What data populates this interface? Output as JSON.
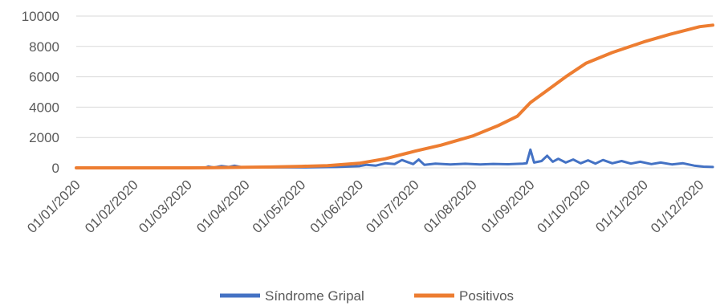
{
  "chart_data": {
    "type": "line",
    "title": "",
    "xlabel": "",
    "ylabel": "",
    "ylim": [
      0,
      10000
    ],
    "yticks": [
      0,
      2000,
      4000,
      6000,
      8000,
      10000
    ],
    "xlim": [
      "2020-01-01",
      "2020-12-08"
    ],
    "xticks": [
      "01/01/2020",
      "01/02/2020",
      "01/03/2020",
      "01/04/2020",
      "01/05/2020",
      "01/06/2020",
      "01/07/2020",
      "01/08/2020",
      "01/09/2020",
      "01/10/2020",
      "01/11/2020",
      "01/12/2020"
    ],
    "grid": true,
    "legend_position": "bottom",
    "series": [
      {
        "name": "Síndrome Gripal",
        "color": "#4472C4",
        "points": [
          [
            "2020-01-01",
            0
          ],
          [
            "2020-03-10",
            0
          ],
          [
            "2020-03-12",
            90
          ],
          [
            "2020-03-15",
            20
          ],
          [
            "2020-03-19",
            120
          ],
          [
            "2020-03-23",
            60
          ],
          [
            "2020-03-26",
            140
          ],
          [
            "2020-03-30",
            40
          ],
          [
            "2020-04-10",
            30
          ],
          [
            "2020-05-01",
            30
          ],
          [
            "2020-05-20",
            60
          ],
          [
            "2020-06-01",
            110
          ],
          [
            "2020-06-05",
            200
          ],
          [
            "2020-06-10",
            150
          ],
          [
            "2020-06-15",
            300
          ],
          [
            "2020-06-20",
            250
          ],
          [
            "2020-06-24",
            520
          ],
          [
            "2020-06-27",
            380
          ],
          [
            "2020-06-30",
            250
          ],
          [
            "2020-07-03",
            550
          ],
          [
            "2020-07-06",
            200
          ],
          [
            "2020-07-12",
            280
          ],
          [
            "2020-07-20",
            220
          ],
          [
            "2020-07-28",
            270
          ],
          [
            "2020-08-05",
            230
          ],
          [
            "2020-08-12",
            260
          ],
          [
            "2020-08-20",
            240
          ],
          [
            "2020-08-28",
            280
          ],
          [
            "2020-08-30",
            300
          ],
          [
            "2020-09-01",
            1200
          ],
          [
            "2020-09-03",
            350
          ],
          [
            "2020-09-07",
            450
          ],
          [
            "2020-09-10",
            800
          ],
          [
            "2020-09-13",
            400
          ],
          [
            "2020-09-16",
            600
          ],
          [
            "2020-09-20",
            350
          ],
          [
            "2020-09-24",
            550
          ],
          [
            "2020-09-28",
            300
          ],
          [
            "2020-10-02",
            500
          ],
          [
            "2020-10-06",
            280
          ],
          [
            "2020-10-10",
            520
          ],
          [
            "2020-10-15",
            300
          ],
          [
            "2020-10-20",
            450
          ],
          [
            "2020-10-25",
            280
          ],
          [
            "2020-10-30",
            400
          ],
          [
            "2020-11-05",
            250
          ],
          [
            "2020-11-10",
            350
          ],
          [
            "2020-11-16",
            230
          ],
          [
            "2020-11-22",
            300
          ],
          [
            "2020-11-28",
            150
          ],
          [
            "2020-12-03",
            80
          ],
          [
            "2020-12-08",
            60
          ]
        ]
      },
      {
        "name": "Positivos",
        "color": "#ED7D31",
        "points": [
          [
            "2020-01-01",
            0
          ],
          [
            "2020-03-01",
            0
          ],
          [
            "2020-03-15",
            10
          ],
          [
            "2020-04-01",
            40
          ],
          [
            "2020-04-15",
            60
          ],
          [
            "2020-05-01",
            100
          ],
          [
            "2020-05-15",
            150
          ],
          [
            "2020-06-01",
            300
          ],
          [
            "2020-06-15",
            600
          ],
          [
            "2020-07-01",
            1100
          ],
          [
            "2020-07-15",
            1500
          ],
          [
            "2020-08-01",
            2100
          ],
          [
            "2020-08-15",
            2800
          ],
          [
            "2020-08-25",
            3400
          ],
          [
            "2020-09-01",
            4300
          ],
          [
            "2020-09-10",
            5100
          ],
          [
            "2020-09-20",
            6000
          ],
          [
            "2020-10-01",
            6900
          ],
          [
            "2020-10-15",
            7600
          ],
          [
            "2020-11-01",
            8300
          ],
          [
            "2020-11-15",
            8800
          ],
          [
            "2020-12-01",
            9300
          ],
          [
            "2020-12-08",
            9400
          ]
        ]
      }
    ]
  }
}
